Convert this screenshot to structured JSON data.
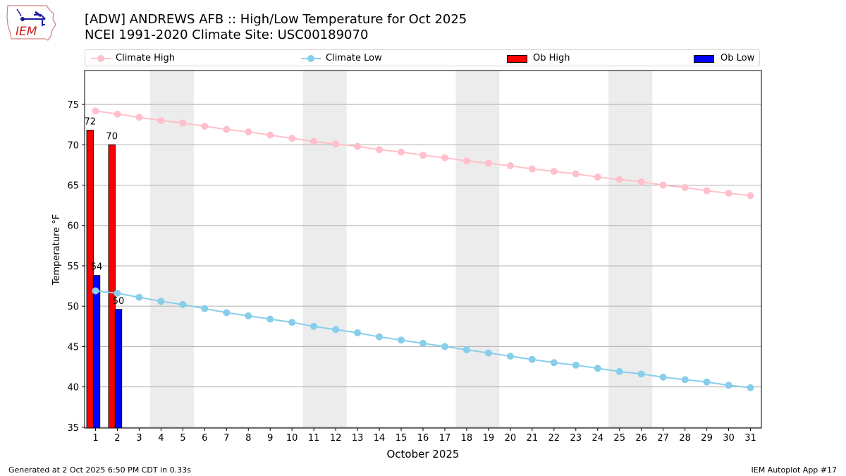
{
  "header": {
    "title_line1": "[ADW] ANDREWS AFB :: High/Low Temperature for Oct 2025",
    "title_line2": "NCEI 1991-2020 Climate Site: USC00189070",
    "logo_text": "IEM"
  },
  "footer": {
    "generated": "Generated at 2 Oct 2025 6:50 PM CDT in 0.33s",
    "app": "IEM Autoplot App #17"
  },
  "colors": {
    "climate_high": "#ffc0cb",
    "climate_low": "#87ceeb",
    "ob_high": "#ff0000",
    "ob_low": "#0000ff",
    "weekend_shade": "#ececec",
    "grid": "#b0b0b0"
  },
  "chart_data": {
    "type": "bar",
    "title": "[ADW] ANDREWS AFB :: High/Low Temperature for Oct 2025",
    "subtitle": "NCEI 1991-2020 Climate Site: USC00189070",
    "xlabel": "October 2025",
    "ylabel": "Temperature °F",
    "xlim": [
      0.5,
      31.5
    ],
    "ylim": [
      34.9,
      79.2
    ],
    "xticks": [
      1,
      2,
      3,
      4,
      5,
      6,
      7,
      8,
      9,
      10,
      11,
      12,
      13,
      14,
      15,
      16,
      17,
      18,
      19,
      20,
      21,
      22,
      23,
      24,
      25,
      26,
      27,
      28,
      29,
      30,
      31
    ],
    "yticks": [
      35,
      40,
      45,
      50,
      55,
      60,
      65,
      70,
      75
    ],
    "grid": "horizontal",
    "legend_position": "top",
    "legend": [
      "Climate High",
      "Climate Low",
      "Ob High",
      "Ob Low"
    ],
    "weekend_spans": [
      [
        4,
        5
      ],
      [
        11,
        12
      ],
      [
        18,
        19
      ],
      [
        25,
        26
      ]
    ],
    "series": [
      {
        "name": "Climate High",
        "type": "line",
        "x": [
          1,
          2,
          3,
          4,
          5,
          6,
          7,
          8,
          9,
          10,
          11,
          12,
          13,
          14,
          15,
          16,
          17,
          18,
          19,
          20,
          21,
          22,
          23,
          24,
          25,
          26,
          27,
          28,
          29,
          30,
          31
        ],
        "values": [
          74.2,
          73.8,
          73.4,
          73.0,
          72.7,
          72.3,
          71.9,
          71.6,
          71.2,
          70.8,
          70.4,
          70.1,
          69.8,
          69.4,
          69.1,
          68.7,
          68.4,
          68.0,
          67.7,
          67.4,
          67.0,
          66.7,
          66.4,
          66.0,
          65.7,
          65.4,
          65.0,
          64.7,
          64.3,
          64.0,
          63.7
        ]
      },
      {
        "name": "Climate Low",
        "type": "line",
        "x": [
          1,
          2,
          3,
          4,
          5,
          6,
          7,
          8,
          9,
          10,
          11,
          12,
          13,
          14,
          15,
          16,
          17,
          18,
          19,
          20,
          21,
          22,
          23,
          24,
          25,
          26,
          27,
          28,
          29,
          30,
          31
        ],
        "values": [
          51.9,
          51.6,
          51.1,
          50.6,
          50.2,
          49.7,
          49.2,
          48.8,
          48.4,
          48.0,
          47.5,
          47.1,
          46.7,
          46.2,
          45.8,
          45.4,
          45.0,
          44.6,
          44.2,
          43.8,
          43.4,
          43.0,
          42.7,
          42.3,
          41.9,
          41.6,
          41.2,
          40.9,
          40.6,
          40.2,
          39.9
        ]
      },
      {
        "name": "Ob High",
        "type": "bar",
        "x": [
          1,
          2
        ],
        "values": [
          71.8,
          70.0
        ],
        "labels": [
          "72",
          "70"
        ]
      },
      {
        "name": "Ob Low",
        "type": "bar",
        "x": [
          1,
          2
        ],
        "values": [
          53.8,
          49.6
        ],
        "labels": [
          "54",
          "50"
        ]
      }
    ]
  }
}
